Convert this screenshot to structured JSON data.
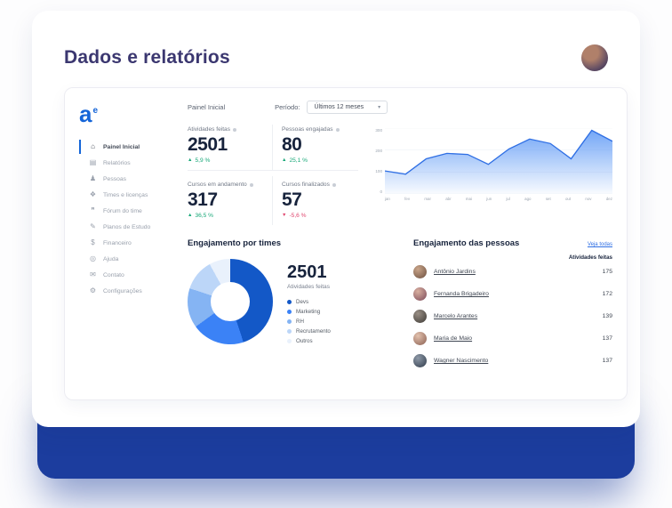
{
  "page": {
    "title": "Dados e relatórios"
  },
  "colors": {
    "band_blue": "#1c3d9e",
    "title_navy": "#3b3770",
    "accent_blue": "#1565d8",
    "link_blue": "#2f6fe4",
    "up_green": "#18a878",
    "down_red": "#e0476f"
  },
  "sidebar": {
    "logo_text": "a",
    "logo_sup": "e",
    "items": [
      {
        "label": "Painel Inicial",
        "icon": "home-icon",
        "glyph": "⌂",
        "active": true
      },
      {
        "label": "Relatórios",
        "icon": "report-icon",
        "glyph": "▤",
        "active": false
      },
      {
        "label": "Pessoas",
        "icon": "person-icon",
        "glyph": "♟",
        "active": false
      },
      {
        "label": "Times e licenças",
        "icon": "team-icon",
        "glyph": "❖",
        "active": false
      },
      {
        "label": "Fórum do time",
        "icon": "forum-icon",
        "glyph": "❞",
        "active": false
      },
      {
        "label": "Planos de Estudo",
        "icon": "study-plan-icon",
        "glyph": "✎",
        "active": false
      },
      {
        "label": "Financeiro",
        "icon": "finance-icon",
        "glyph": "$",
        "active": false
      },
      {
        "label": "Ajuda",
        "icon": "help-icon",
        "glyph": "◎",
        "active": false
      },
      {
        "label": "Contato",
        "icon": "contact-icon",
        "glyph": "✉",
        "active": false
      },
      {
        "label": "Configurações",
        "icon": "settings-icon",
        "glyph": "⚙",
        "active": false
      }
    ]
  },
  "topbar": {
    "breadcrumb": "Painel Inicial",
    "period_label": "Período:",
    "period_value": "Últimos 12 meses"
  },
  "stats": [
    {
      "label": "Atividades feitas",
      "value": "2501",
      "delta": "5,9 %",
      "direction": "up"
    },
    {
      "label": "Pessoas engajadas",
      "value": "80",
      "delta": "25,1 %",
      "direction": "up"
    },
    {
      "label": "Cursos em andamento",
      "value": "317",
      "delta": "36,5 %",
      "direction": "up"
    },
    {
      "label": "Cursos finalizados",
      "value": "57",
      "delta": "-5,6 %",
      "direction": "down"
    }
  ],
  "chart_data": [
    {
      "type": "area",
      "x": [
        "jan",
        "fev",
        "mar",
        "abr",
        "mai",
        "jun",
        "jul",
        "ago",
        "set",
        "out",
        "nov",
        "dez"
      ],
      "values": [
        105,
        90,
        160,
        185,
        180,
        135,
        205,
        250,
        230,
        160,
        290,
        240
      ],
      "ylim": [
        0,
        300
      ],
      "y_ticks": [
        0,
        100,
        200,
        300
      ],
      "line_color": "#2f6fe4",
      "fill_color": "#5b97f5",
      "legend_position": "none",
      "grid": true
    },
    {
      "type": "pie",
      "title": "Engajamento por times",
      "categories": [
        "Devs",
        "Marketing",
        "RH",
        "Recrutamento",
        "Outros"
      ],
      "values": [
        45,
        20,
        15,
        12,
        8
      ],
      "colors": [
        "#1358c7",
        "#3b82f6",
        "#85b4f3",
        "#bcd6f8",
        "#e9f1fc"
      ],
      "total": "2501",
      "total_label": "Atividades feitas",
      "legend_position": "right"
    }
  ],
  "people": {
    "title": "Engajamento das pessoas",
    "link_label": "Veja todas",
    "column_header": "Atividades feitas",
    "rows": [
      {
        "name": "Antônio Jardins",
        "value": "175"
      },
      {
        "name": "Fernanda Brigadeiro",
        "value": "172"
      },
      {
        "name": "Marcelo Arantes",
        "value": "139"
      },
      {
        "name": "Maria de Maio",
        "value": "137"
      },
      {
        "name": "Wagner Nascimento",
        "value": "137"
      }
    ]
  }
}
